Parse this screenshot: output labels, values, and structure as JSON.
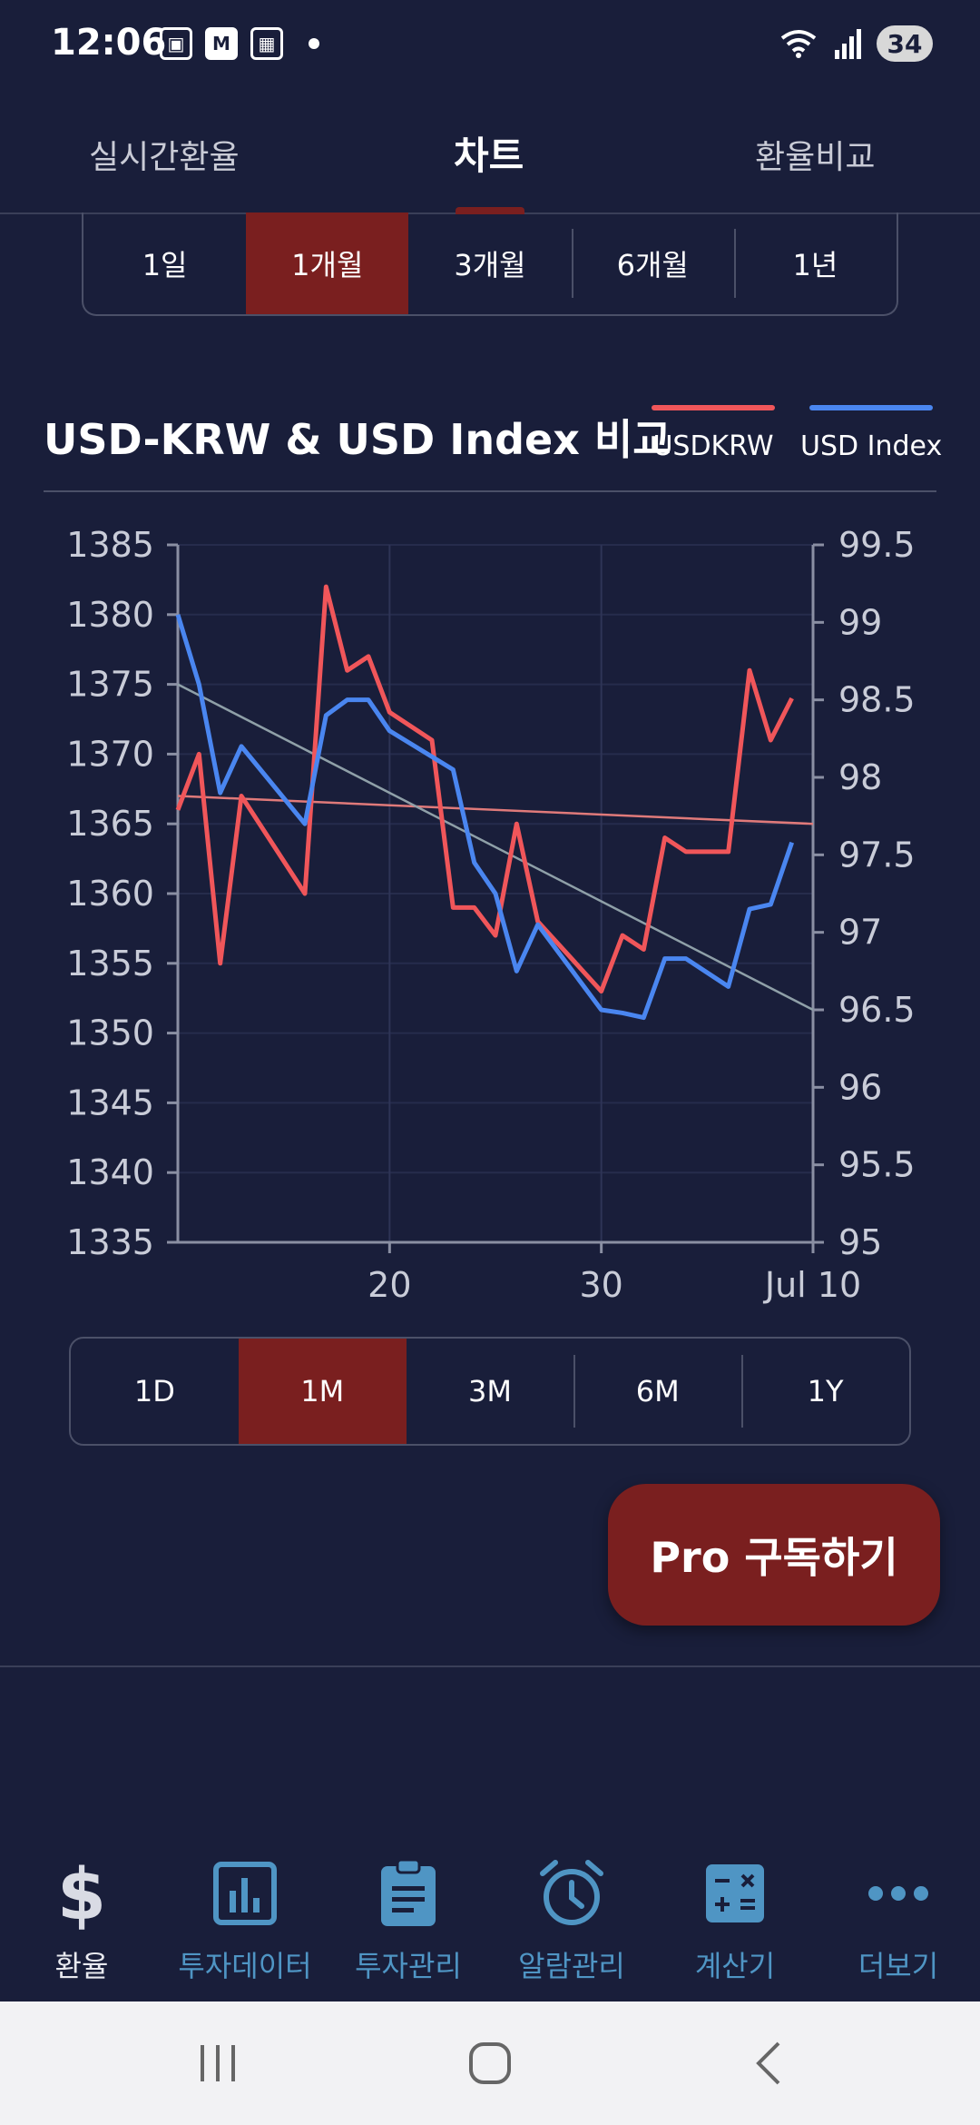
{
  "status_bar": {
    "time": "12:06",
    "battery": "34"
  },
  "top_tabs": [
    {
      "label": "실시간환율",
      "active": false
    },
    {
      "label": "차트",
      "active": true
    },
    {
      "label": "환율비교",
      "active": false
    }
  ],
  "period_tabs_kr": [
    {
      "label": "1일",
      "active": false
    },
    {
      "label": "1개월",
      "active": true
    },
    {
      "label": "3개월",
      "active": false
    },
    {
      "label": "6개월",
      "active": false
    },
    {
      "label": "1년",
      "active": false
    }
  ],
  "chart_header": {
    "title": "USD-KRW & USD Index 비교",
    "legend": [
      {
        "label": "USDKRW",
        "color": "#f0565a"
      },
      {
        "label": "USD Index",
        "color": "#4a86f0"
      }
    ]
  },
  "chart_data": {
    "type": "line",
    "x_ticks": [
      "20",
      "30",
      "Jul 10"
    ],
    "left_axis": {
      "ylim": [
        1335,
        1385
      ],
      "ticks": [
        "1385",
        "1380",
        "1375",
        "1370",
        "1365",
        "1360",
        "1355",
        "1350",
        "1345",
        "1340",
        "1335"
      ]
    },
    "right_axis": {
      "ylim": [
        95,
        99.5
      ],
      "ticks": [
        "99.5",
        "99",
        "98.5",
        "98",
        "97.5",
        "97",
        "96.5",
        "96",
        "95.5",
        "95"
      ]
    },
    "grid": true,
    "series": [
      {
        "name": "USDKRW",
        "axis": "left",
        "color": "#f0565a",
        "x": [
          10,
          11,
          12,
          13,
          16,
          17,
          18,
          19,
          20,
          22,
          23,
          24,
          25,
          26,
          27,
          30,
          31,
          32,
          33,
          34,
          36,
          37,
          38,
          39
        ],
        "values": [
          1366,
          1370,
          1355,
          1367,
          1360,
          1382,
          1376,
          1377,
          1373,
          1371,
          1359,
          1359,
          1357,
          1365,
          1358,
          1353,
          1357,
          1356,
          1364,
          1363,
          1363,
          1376,
          1371,
          1374
        ]
      },
      {
        "name": "USD Index",
        "axis": "right",
        "color": "#4a86f0",
        "x": [
          10,
          11,
          12,
          13,
          16,
          17,
          18,
          19,
          20,
          23,
          24,
          25,
          26,
          27,
          30,
          31,
          32,
          33,
          34,
          36,
          37,
          38,
          39
        ],
        "values": [
          99.05,
          98.6,
          97.9,
          98.2,
          97.7,
          98.4,
          98.5,
          98.5,
          98.3,
          98.05,
          97.45,
          97.25,
          96.75,
          97.05,
          96.5,
          96.48,
          96.45,
          96.83,
          96.83,
          96.65,
          97.15,
          97.18,
          97.58
        ]
      }
    ],
    "trendlines": [
      {
        "for": "USDKRW",
        "color": "#e07a7a",
        "from": [
          10,
          1367
        ],
        "to": [
          40,
          1365
        ]
      },
      {
        "for": "USD Index",
        "color": "#8fa0a8",
        "from": [
          10,
          98.6
        ],
        "to": [
          40,
          96.5
        ]
      }
    ]
  },
  "period_tabs_en": [
    {
      "label": "1D",
      "active": false
    },
    {
      "label": "1M",
      "active": true
    },
    {
      "label": "3M",
      "active": false
    },
    {
      "label": "6M",
      "active": false
    },
    {
      "label": "1Y",
      "active": false
    }
  ],
  "pro_button": {
    "label": "Pro 구독하기"
  },
  "bottom_nav": [
    {
      "label": "환율",
      "icon": "dollar-icon",
      "active": true
    },
    {
      "label": "투자데이터",
      "icon": "bar-chart-icon",
      "active": false
    },
    {
      "label": "투자관리",
      "icon": "clipboard-icon",
      "active": false
    },
    {
      "label": "알람관리",
      "icon": "alarm-clock-icon",
      "active": false
    },
    {
      "label": "계산기",
      "icon": "calculator-icon",
      "active": false
    },
    {
      "label": "더보기",
      "icon": "more-dots-icon",
      "active": false
    }
  ],
  "colors": {
    "background": "#191e3a",
    "accent": "#7a1f1f",
    "nav_icon": "#4f95c4"
  }
}
